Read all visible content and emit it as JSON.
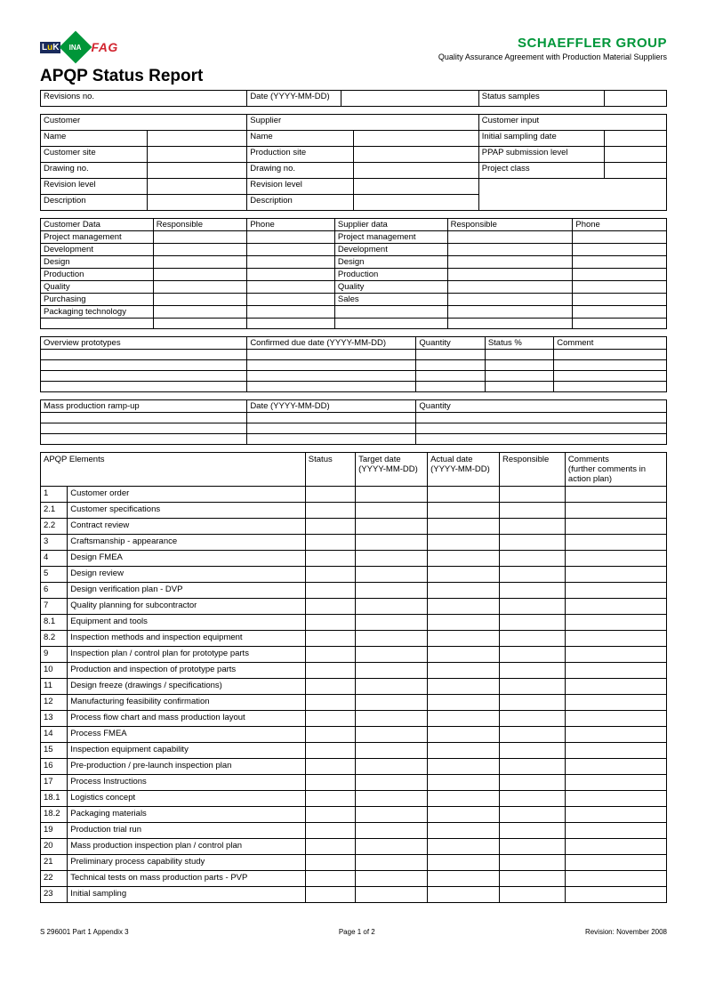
{
  "header": {
    "logos": {
      "luk": "LuK",
      "ina": "INA",
      "fag": "FAG"
    },
    "company": "SCHAEFFLER GROUP",
    "subtitle": "Quality Assurance Agreement with Production Material Suppliers"
  },
  "title": "APQP Status Report",
  "revisions": {
    "rev_label": "Revisions no.",
    "date_label": "Date (YYYY-MM-DD)",
    "status_label": "Status samples"
  },
  "customer_block": {
    "customer": "Customer",
    "supplier": "Supplier",
    "customer_input": "Customer input",
    "rows": [
      [
        "Name",
        "Name",
        "Initial sampling date"
      ],
      [
        "Customer site",
        "Production site",
        "PPAP submission level"
      ],
      [
        "Drawing no.",
        "Drawing no.",
        "Project class"
      ],
      [
        "Revision level",
        "Revision level",
        ""
      ],
      [
        "Description",
        "Description",
        ""
      ]
    ]
  },
  "contacts": {
    "headers": [
      "Customer Data",
      "Responsible",
      "Phone",
      "Supplier data",
      "Responsible",
      "Phone"
    ],
    "customer_rows": [
      "Project management",
      "Development",
      "Design",
      "Production",
      "Quality",
      "Purchasing",
      "Packaging technology"
    ],
    "supplier_rows": [
      "Project management",
      "Development",
      "Design",
      "Production",
      "Quality",
      "Sales",
      ""
    ]
  },
  "prototypes": {
    "headers": [
      "Overview prototypes",
      "Confirmed due date    (YYYY-MM-DD)",
      "Quantity",
      "Status %",
      "Comment"
    ],
    "blank_rows": 4
  },
  "rampup": {
    "headers": [
      "Mass production ramp-up",
      "Date (YYYY-MM-DD)",
      "Quantity"
    ],
    "blank_rows": 3
  },
  "apqp": {
    "headers": [
      "APQP Elements",
      "Status",
      "Target date (YYYY-MM-DD)",
      "Actual date (YYYY-MM-DD)",
      "Responsible",
      "Comments\n(further comments in action plan)"
    ],
    "rows": [
      [
        "1",
        "Customer order"
      ],
      [
        "2.1",
        "Customer specifications"
      ],
      [
        "2.2",
        "Contract review"
      ],
      [
        "3",
        "Craftsmanship - appearance"
      ],
      [
        "4",
        "Design FMEA"
      ],
      [
        "5",
        "Design review"
      ],
      [
        "6",
        "Design verification plan - DVP"
      ],
      [
        "7",
        "Quality planning for subcontractor"
      ],
      [
        "8.1",
        "Equipment and tools"
      ],
      [
        "8.2",
        "Inspection methods and inspection equipment"
      ],
      [
        "9",
        "Inspection plan / control plan for prototype parts"
      ],
      [
        "10",
        "Production and inspection of prototype parts"
      ],
      [
        "11",
        "Design freeze (drawings / specifications)"
      ],
      [
        "12",
        "Manufacturing feasibility confirmation"
      ],
      [
        "13",
        "Process flow chart and mass production layout"
      ],
      [
        "14",
        "Process FMEA"
      ],
      [
        "15",
        "Inspection equipment capability"
      ],
      [
        "16",
        "Pre-production / pre-launch inspection plan"
      ],
      [
        "17",
        "Process Instructions"
      ],
      [
        "18.1",
        "Logistics concept"
      ],
      [
        "18.2",
        "Packaging materials"
      ],
      [
        "19",
        "Production trial run"
      ],
      [
        "20",
        "Mass production inspection plan / control plan"
      ],
      [
        "21",
        "Preliminary process capability study"
      ],
      [
        "22",
        "Technical tests on mass production parts - PVP"
      ],
      [
        "23",
        "Initial sampling"
      ]
    ]
  },
  "footer": {
    "left": "S 296001 Part 1 Appendix 3",
    "center": "Page 1 of 2",
    "right": "Revision: November 2008"
  },
  "colors": {
    "green": "#009639",
    "red": "#d22630",
    "dark_blue": "#1a2b5c",
    "yellow": "#ffd700",
    "black": "#000000",
    "white": "#ffffff"
  }
}
